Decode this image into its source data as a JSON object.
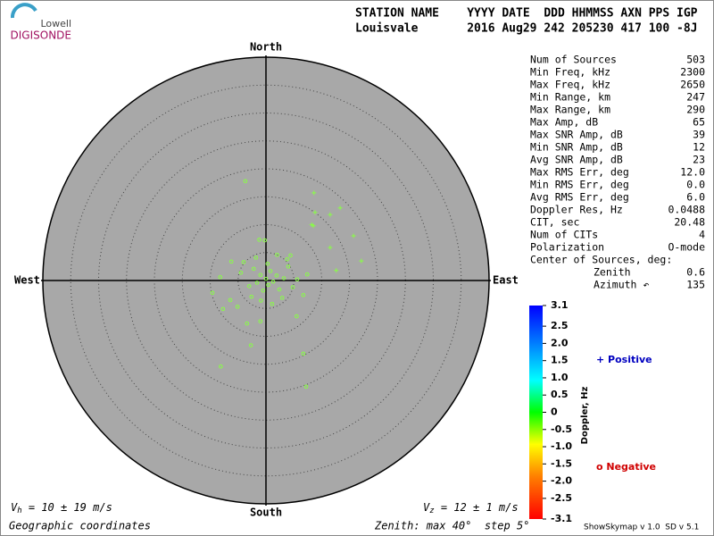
{
  "logo": {
    "top": "Lowell",
    "bottom": "DIGISONDE"
  },
  "header": {
    "line1": "STATION NAME    YYYY DATE  DDD HHMMSS AXN PPS IGP",
    "line2": "Louisvale       2016 Aug29 242 205230 417 100 -8J"
  },
  "compass": {
    "north": "North",
    "south": "South",
    "west": "West",
    "east": "East"
  },
  "stats": [
    [
      "Num of Sources",
      "503"
    ],
    [
      "Min Freq, kHz",
      "2300"
    ],
    [
      "Max Freq, kHz",
      "2650"
    ],
    [
      "Min Range, km",
      "247"
    ],
    [
      "Max Range, km",
      "290"
    ],
    [
      "Max Amp, dB",
      "65"
    ],
    [
      "Max SNR Amp, dB",
      "39"
    ],
    [
      "Min SNR Amp, dB",
      "12"
    ],
    [
      "Avg SNR Amp, dB",
      "23"
    ],
    [
      "Max RMS Err, deg",
      "12.0"
    ],
    [
      "Min RMS Err, deg",
      "0.0"
    ],
    [
      "Avg RMS Err, deg",
      "6.0"
    ],
    [
      "Doppler Res, Hz",
      "0.0488"
    ],
    [
      "CIT, sec",
      "20.48"
    ],
    [
      "Num of CITs",
      "4"
    ],
    [
      "Polarization",
      "O-mode"
    ],
    [
      "Center of Sources, deg:"
    ],
    [
      "Zenith",
      "0.6"
    ],
    [
      "Azimuth ↶",
      "135"
    ]
  ],
  "skymap": {
    "zenith": {
      "label": "Zenith: max 40°  step 5°",
      "max": 40,
      "step": 5
    },
    "color": "#88ff44",
    "positive": {
      "x": [
        8.6,
        13.3,
        11.5,
        8.8,
        8.5,
        15.7,
        11.5,
        17.1,
        12.6,
        8.2
      ],
      "y": [
        15.7,
        13.0,
        11.8,
        12.2,
        9.8,
        8.0,
        5.9,
        3.5,
        1.8,
        10.0
      ]
    },
    "negative": {
      "x": [
        -3.7,
        -9.6,
        -8.2,
        -6.4,
        -4.5,
        -3.0,
        -2.2,
        -1.6,
        -1.0,
        -0.5,
        0,
        0.4,
        0.8,
        1.3,
        1.9,
        2.4,
        3.2,
        4.0,
        4.8,
        5.6,
        6.7,
        7.4,
        -5.1,
        -4.0,
        -2.6,
        -1.8,
        -0.9,
        0.3,
        1.1,
        2.0,
        2.9,
        3.8,
        -0.2,
        -7.7,
        -8.1,
        6.7,
        7.2,
        -2.7,
        -1.0,
        5.5,
        -3.4,
        -6.2,
        -1.2,
        4.4
      ],
      "y": [
        17.8,
        -2.2,
        0.6,
        -3.5,
        1.4,
        -1.0,
        2.1,
        -0.4,
        1.0,
        -1.8,
        0.3,
        -0.8,
        1.7,
        -0.2,
        0.9,
        -1.6,
        0.4,
        2.5,
        -1.2,
        0.2,
        -2.6,
        1.1,
        -4.7,
        3.3,
        -2.9,
        4.1,
        -3.6,
        3.0,
        -4.2,
        4.6,
        -3.1,
        3.8,
        7.2,
        -5.1,
        -15.4,
        -13.1,
        -19.0,
        -11.6,
        -7.3,
        -6.4,
        -7.7,
        3.4,
        7.3,
        4.5
      ]
    }
  },
  "colorbar": {
    "title": "Doppler, Hz",
    "lim": [
      -3.1,
      3.1
    ],
    "ticks": [
      3.1,
      2.5,
      {
        "value": 2.0,
        "label": "2.0"
      },
      1.5,
      {
        "value": 1.0,
        "label": "1.0"
      },
      0.5,
      0,
      -0.5,
      {
        "value": -1.0,
        "label": "-1.0"
      },
      -1.5,
      {
        "value": -2.0,
        "label": "-2.0"
      },
      -2.5,
      -3.1
    ]
  },
  "legend": {
    "positive": "+ Positive",
    "negative": "o Negative"
  },
  "footer": {
    "vh": {
      "symbol": "V",
      "sub": "h",
      "text": " = 10 ± 19 m/s"
    },
    "vz": {
      "symbol": "V",
      "sub": "z",
      "text": " = 12 ± 1 m/s"
    },
    "coords": "Geographic coordinates",
    "version": "ShowSkymap v 1.0  SD v 5.1"
  }
}
